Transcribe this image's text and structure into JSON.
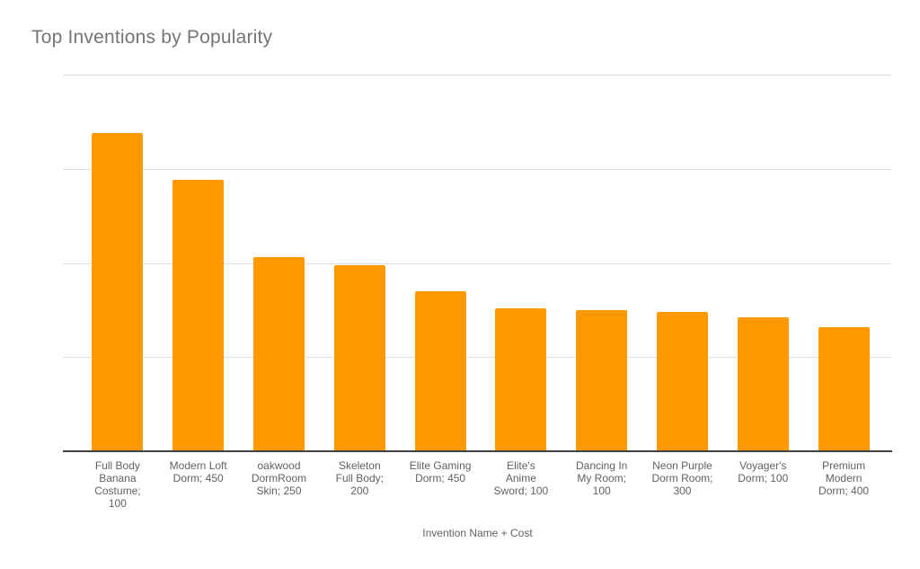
{
  "colors": {
    "bar": "#ff9900",
    "title_text": "#757575",
    "axis_label_text": "#616161",
    "gridline": "#e0e0e0",
    "axis_line": "#424242",
    "background": "#ffffff"
  },
  "chart_data": {
    "type": "bar",
    "title": "Top Inventions by Popularity",
    "xlabel": "Invention Name + Cost",
    "ylabel": "",
    "legend": "none",
    "grid": true,
    "y_tick_labels_visible": false,
    "ylim": [
      0,
      200
    ],
    "gridline_step": 50,
    "bar_color": "#ff9900",
    "categories": [
      "Full Body Banana Costume; 100",
      "Modern Loft Dorm; 450",
      "oakwood DormRoom Skin; 250",
      "Skeleton Full Body; 200",
      "Elite Gaming Dorm; 450",
      "Elite's Anime Sword; 100",
      "Dancing In My Room; 100",
      "Neon Purple Dorm Room; 300",
      "Voyager's Dorm; 100",
      "Premium Modern Dorm; 400"
    ],
    "category_lines": [
      [
        "Full Body",
        "Banana",
        "Costume;",
        "100"
      ],
      [
        "Modern Loft",
        "Dorm; 450"
      ],
      [
        "oakwood",
        "DormRoom",
        "Skin; 250"
      ],
      [
        "Skeleton",
        "Full Body;",
        "200"
      ],
      [
        "Elite Gaming",
        "Dorm; 450"
      ],
      [
        "Elite's",
        "Anime",
        "Sword; 100"
      ],
      [
        "Dancing In",
        "My Room;",
        "100"
      ],
      [
        "Neon Purple",
        "Dorm Room;",
        "300"
      ],
      [
        "Voyager's",
        "Dorm; 100"
      ],
      [
        "Premium",
        "Modern",
        "Dorm; 400"
      ]
    ],
    "values": [
      169,
      144,
      103,
      99,
      85,
      76,
      75,
      74,
      71,
      66
    ],
    "values_note": "estimated from bar heights; y-axis shows unlabeled gridlines only"
  }
}
